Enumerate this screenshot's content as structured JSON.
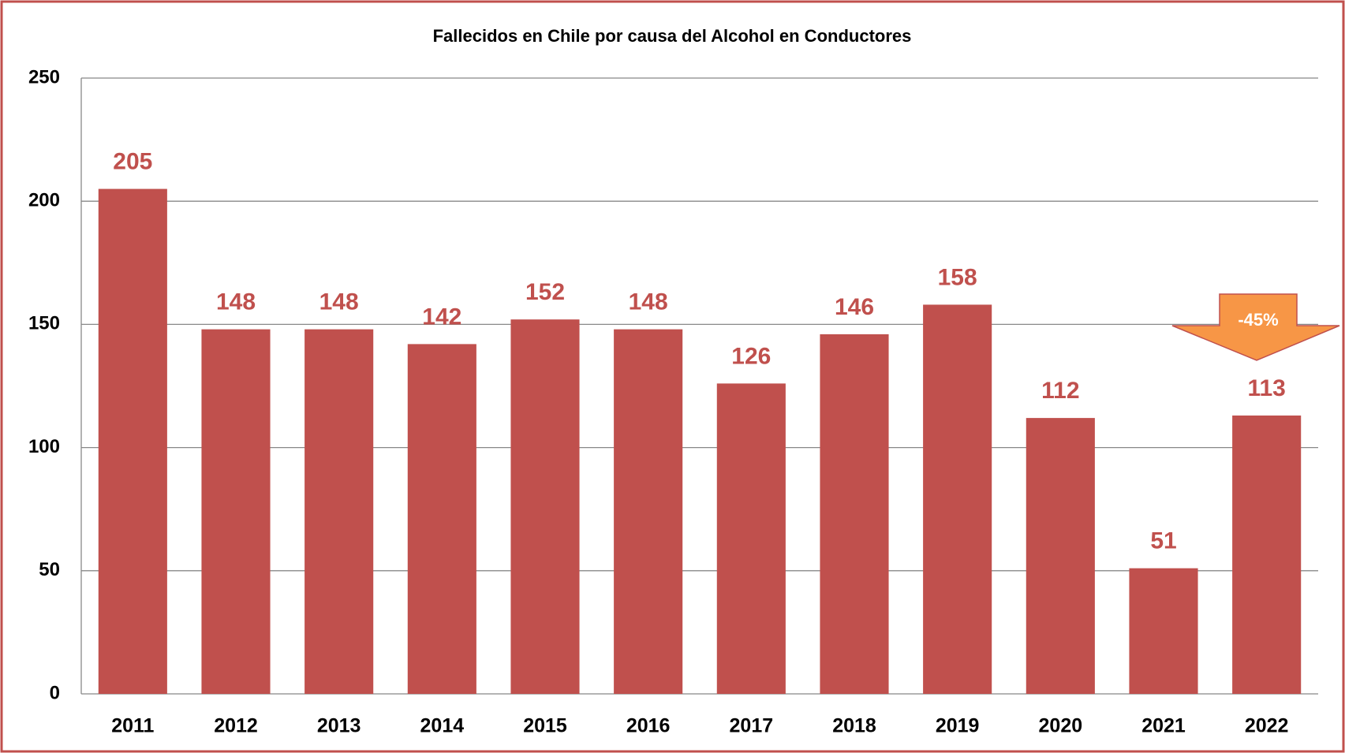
{
  "chart_data": {
    "type": "bar",
    "title": "Fallecidos en Chile por causa del Alcohol en Conductores",
    "categories": [
      "2011",
      "2012",
      "2013",
      "2014",
      "2015",
      "2016",
      "2017",
      "2018",
      "2019",
      "2020",
      "2021",
      "2022"
    ],
    "values": [
      205,
      148,
      148,
      142,
      152,
      148,
      126,
      146,
      158,
      112,
      51,
      113
    ],
    "color": "#c0504d",
    "ylim": [
      0,
      250
    ],
    "yticks": [
      0,
      50,
      100,
      150,
      200,
      250
    ],
    "grid": true,
    "annotation": "-45%"
  }
}
